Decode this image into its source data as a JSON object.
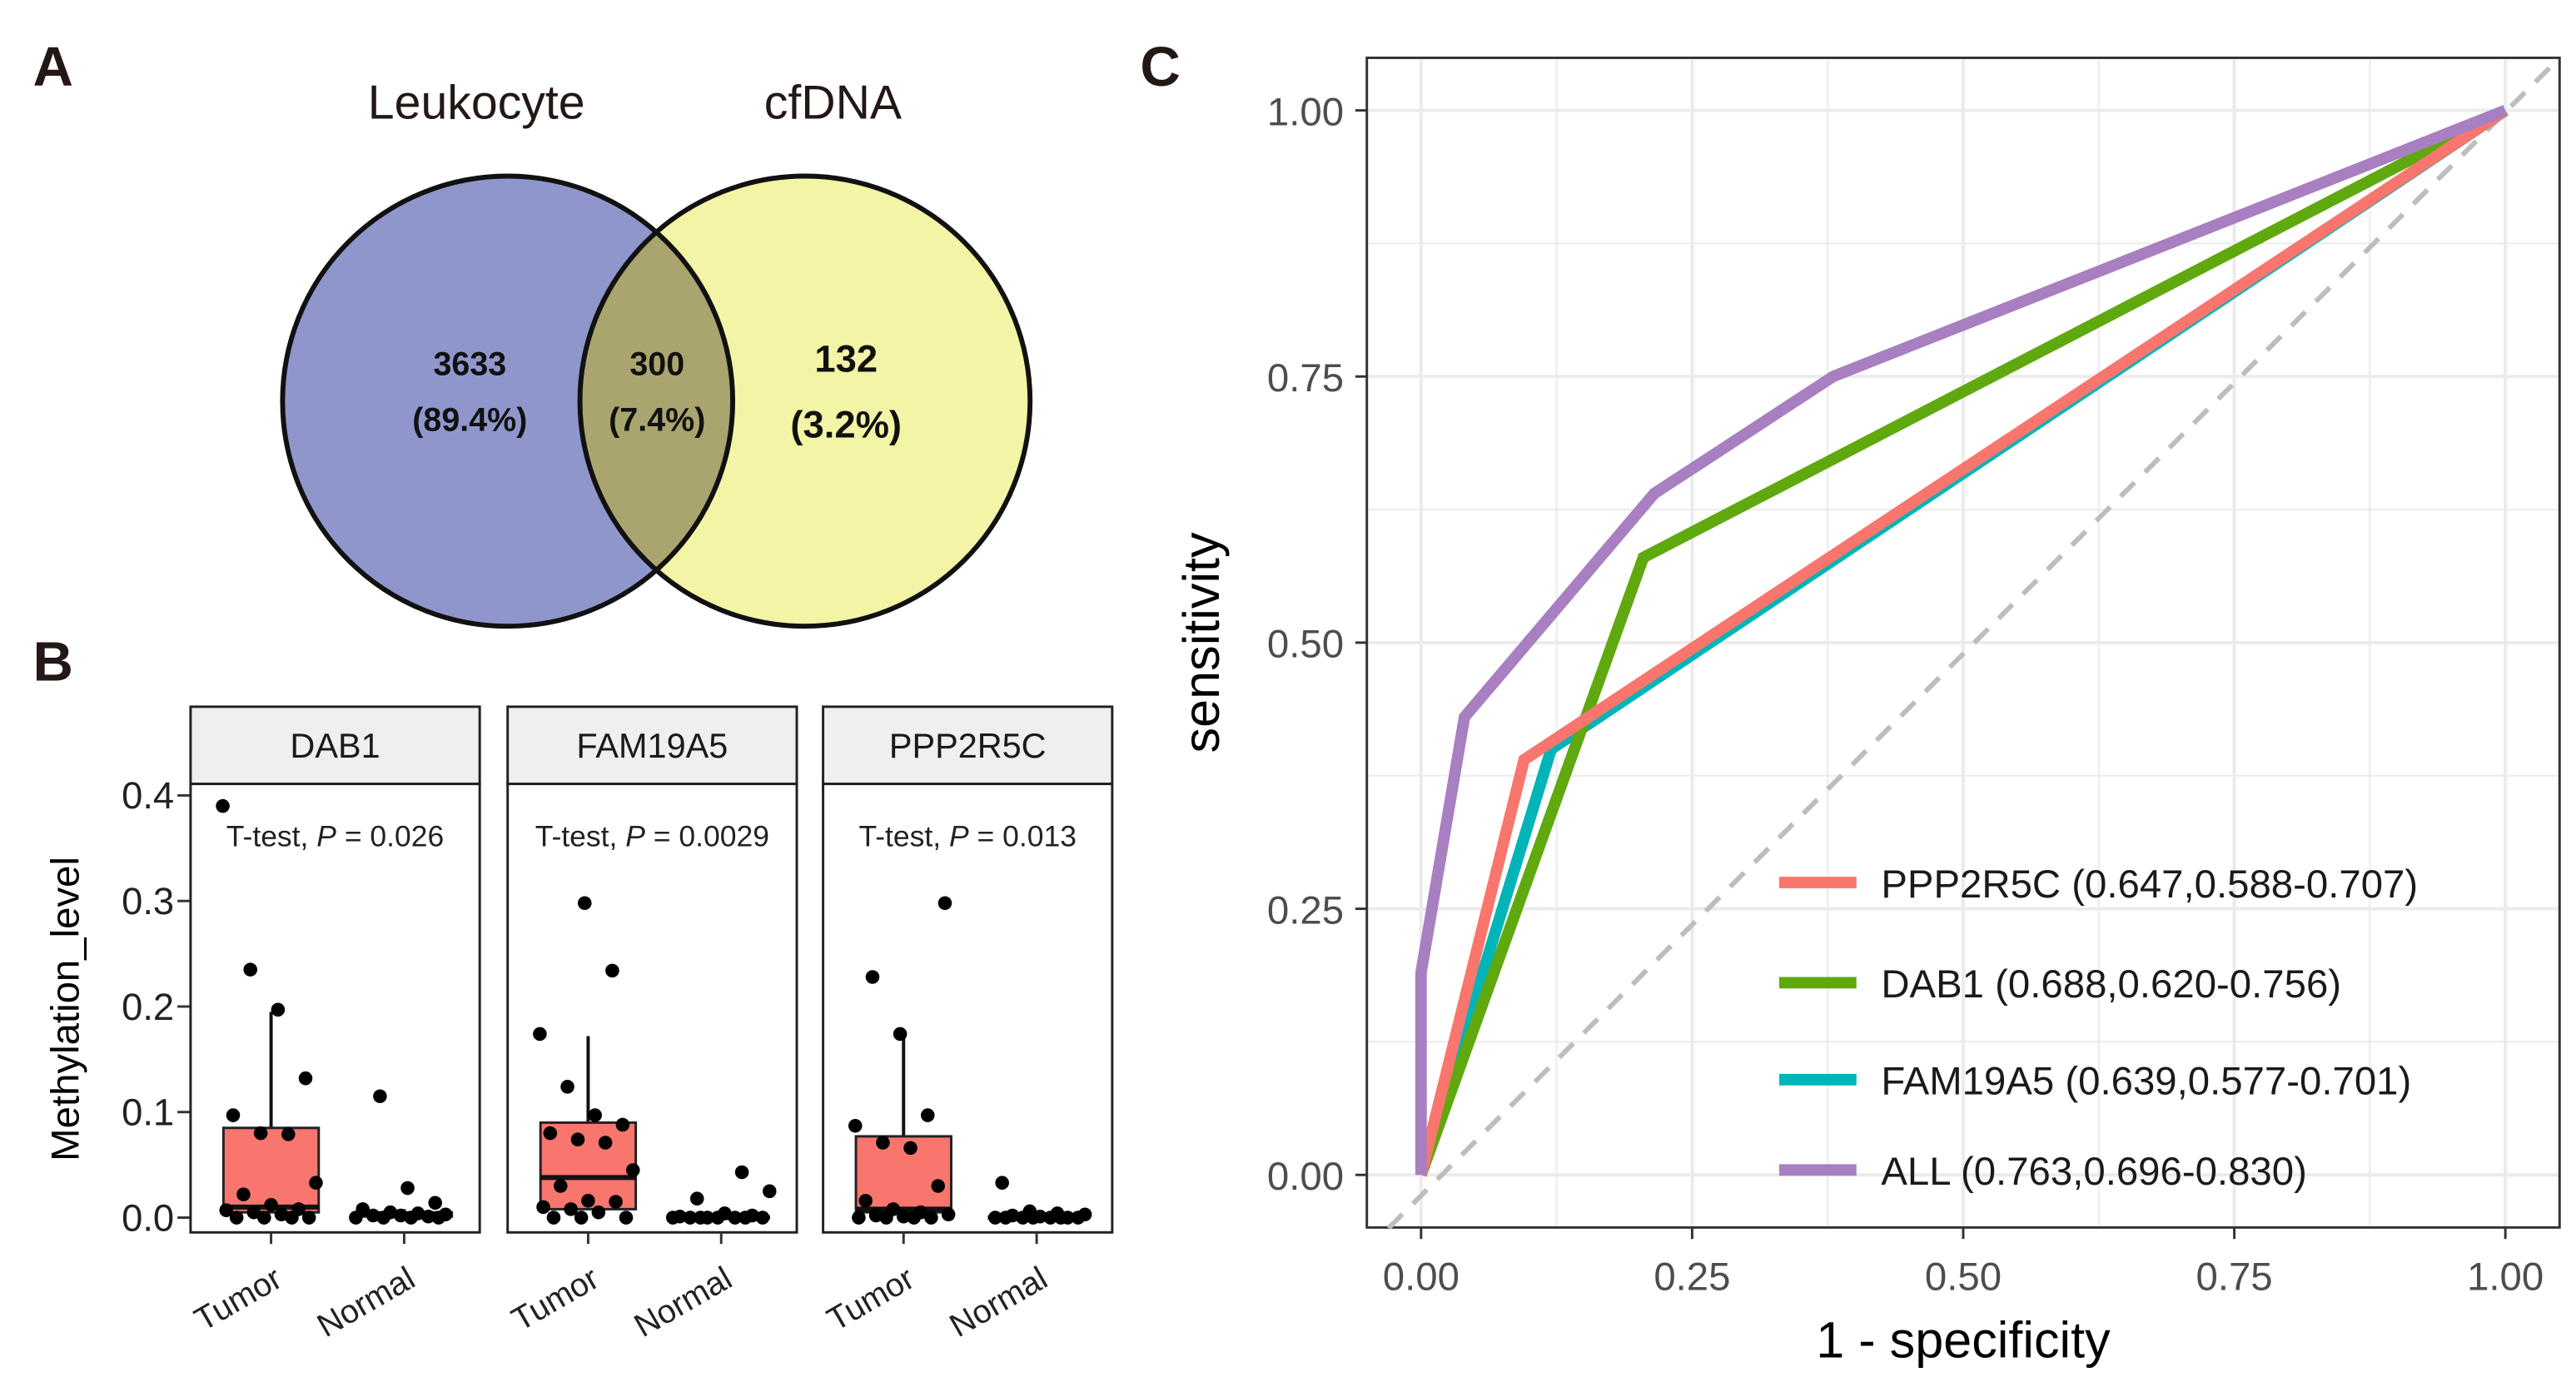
{
  "panel_labels": {
    "a": "A",
    "b": "B",
    "c": "C"
  },
  "chart_data": [
    {
      "type": "venn",
      "sets": [
        {
          "name": "Leukocyte",
          "color": "#8f96cc"
        },
        {
          "name": "cfDNA",
          "color": "#f4f4a6"
        }
      ],
      "overlap_color": "#aaa56f",
      "regions": [
        {
          "count": "3633",
          "pct": "(89.4%)"
        },
        {
          "count": "300",
          "pct": "(7.4%)"
        },
        {
          "count": "132",
          "pct": "(3.2%)"
        }
      ]
    },
    {
      "type": "box",
      "ylabel": "Methylation_level",
      "yticks": [
        "0.0",
        "0.1",
        "0.2",
        "0.3",
        "0.4"
      ],
      "ylim": [
        0,
        0.4
      ],
      "categories": [
        "Tumor",
        "Normal"
      ],
      "box_color": "#f8766d",
      "facets": [
        {
          "name": "DAB1",
          "test": "T-test, ",
          "p": "P",
          "pval": " = 0.026",
          "boxes": [
            {
              "q1": 0.005,
              "median": 0.01,
              "q3": 0.085,
              "lo": 0.0,
              "hi": 0.195
            },
            {
              "q1": 0.001,
              "median": 0.003,
              "q3": 0.005,
              "lo": 0.0,
              "hi": 0.008
            }
          ],
          "points": [
            [
              0.39,
              0.235,
              0.197,
              0.132,
              0.097,
              0.08,
              0.079,
              0.033,
              0.022,
              0.012,
              0.008,
              0.007,
              0.005,
              0.003,
              0.0,
              0.0,
              0.0,
              0.0
            ],
            [
              0.115,
              0.028,
              0.014,
              0.008,
              0.005,
              0.004,
              0.003,
              0.002,
              0.002,
              0.001,
              0.0,
              0.0,
              0.0,
              0.0
            ]
          ]
        },
        {
          "name": "FAM19A5",
          "test": "T-test, ",
          "p": "P",
          "pval": " = 0.0029",
          "boxes": [
            {
              "q1": 0.008,
              "median": 0.038,
              "q3": 0.09,
              "lo": 0.0,
              "hi": 0.172
            },
            {
              "q1": 0.0,
              "median": 0.0,
              "q3": 0.001,
              "lo": 0.0,
              "hi": 0.002
            }
          ],
          "points": [
            [
              0.298,
              0.234,
              0.174,
              0.124,
              0.097,
              0.088,
              0.08,
              0.074,
              0.071,
              0.045,
              0.03,
              0.016,
              0.015,
              0.01,
              0.008,
              0.005,
              0.0,
              0.0,
              0.0
            ],
            [
              0.043,
              0.025,
              0.018,
              0.004,
              0.002,
              0.001,
              0.0,
              0.0,
              0.0,
              0.0,
              0.0,
              0.0,
              0.0,
              0.0
            ]
          ]
        },
        {
          "name": "PPP2R5C",
          "test": "T-test, ",
          "p": "P",
          "pval": " = 0.013",
          "boxes": [
            {
              "q1": 0.005,
              "median": 0.008,
              "q3": 0.077,
              "lo": 0.0,
              "hi": 0.172
            },
            {
              "q1": 0.0,
              "median": 0.0,
              "q3": 0.001,
              "lo": 0.0,
              "hi": 0.002
            }
          ],
          "points": [
            [
              0.298,
              0.228,
              0.174,
              0.097,
              0.087,
              0.071,
              0.066,
              0.03,
              0.016,
              0.008,
              0.005,
              0.003,
              0.002,
              0.001,
              0.0,
              0.0,
              0.0,
              0.0
            ],
            [
              0.033,
              0.006,
              0.004,
              0.003,
              0.002,
              0.001,
              0.0,
              0.0,
              0.0,
              0.0,
              0.0,
              0.0,
              0.0,
              0.0
            ]
          ]
        }
      ]
    },
    {
      "type": "line",
      "xlabel": "1 - specificity",
      "ylabel": "sensitivity",
      "xlim": [
        0,
        1
      ],
      "ylim": [
        0,
        1
      ],
      "xticks": [
        "0.00",
        "0.25",
        "0.50",
        "0.75",
        "1.00"
      ],
      "yticks": [
        "0.00",
        "0.25",
        "0.50",
        "0.75",
        "1.00"
      ],
      "grid": true,
      "legend_position": "bottom-right",
      "series": [
        {
          "name": "PPP2R5C (0.647,0.588-0.707)",
          "color": "#f8766d",
          "x": [
            0,
            0.095,
            1
          ],
          "y": [
            0,
            0.39,
            1
          ]
        },
        {
          "name": "DAB1 (0.688,0.620-0.756)",
          "color": "#5fa90f",
          "x": [
            0,
            0.205,
            1
          ],
          "y": [
            0,
            0.58,
            1
          ]
        },
        {
          "name": "FAM19A5 (0.639,0.577-0.701)",
          "color": "#00b4b8",
          "x": [
            0,
            0.12,
            1
          ],
          "y": [
            0,
            0.4,
            1
          ]
        },
        {
          "name": "ALL (0.763,0.696-0.830)",
          "color": "#a87fc0",
          "x": [
            0,
            0,
            0.04,
            0.215,
            0.38,
            1
          ],
          "y": [
            0,
            0.19,
            0.43,
            0.64,
            0.75,
            1
          ]
        }
      ]
    }
  ]
}
